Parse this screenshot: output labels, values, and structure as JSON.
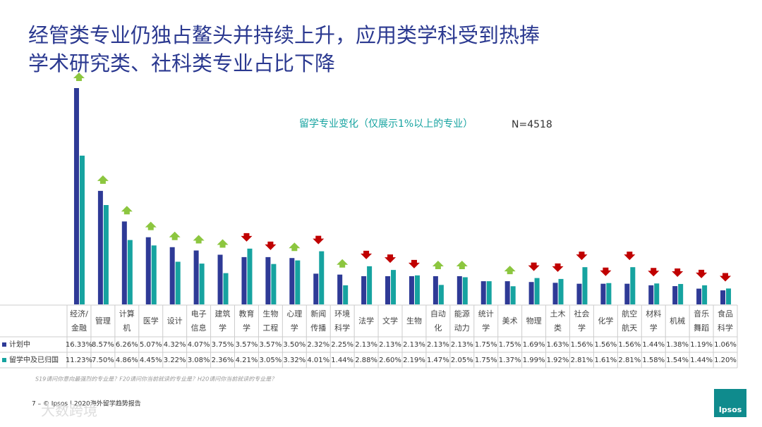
{
  "title": [
    "经管类专业仍独占鳌头并持续上升，应用类学科受到热捧",
    "学术研究类、社科类专业占比下降"
  ],
  "chart_data": {
    "type": "bar",
    "subtitle": "留学专业变化（仅展示1%以上的专业）",
    "note": "N=4518",
    "categories": [
      "经济/金融",
      "管理",
      "计算机",
      "医学",
      "设计",
      "电子信息",
      "建筑学",
      "教育学",
      "生物工程",
      "心理学",
      "新闻传播",
      "环境科学",
      "法学",
      "文学",
      "生物",
      "自动化",
      "能源动力",
      "统计学",
      "美术",
      "物理",
      "土木类",
      "社会学",
      "化学",
      "航空航天",
      "材料学",
      "机械",
      "音乐舞蹈",
      "食品科学"
    ],
    "series": [
      {
        "name": "计划中",
        "color": "#2e3a96",
        "values": [
          16.33,
          8.57,
          6.26,
          5.07,
          4.32,
          4.07,
          3.75,
          3.57,
          3.57,
          3.5,
          2.32,
          2.25,
          2.13,
          2.13,
          2.13,
          2.13,
          2.13,
          1.75,
          1.75,
          1.69,
          1.63,
          1.56,
          1.56,
          1.56,
          1.44,
          1.38,
          1.19,
          1.06
        ],
        "value_labels": [
          "16.33%",
          "8.57%",
          "6.26%",
          "5.07%",
          "4.32%",
          "4.07%",
          "3.75%",
          "3.57%",
          "3.57%",
          "3.50%",
          "2.32%",
          "2.25%",
          "2.13%",
          "2.13%",
          "2.13%",
          "2.13%",
          "2.13%",
          "1.75%",
          "1.75%",
          "1.69%",
          "1.63%",
          "1.56%",
          "1.56%",
          "1.56%",
          "1.44%",
          "1.38%",
          "1.19%",
          "1.06%"
        ]
      },
      {
        "name": "留学中及已归国",
        "color": "#16a3a0",
        "values": [
          11.23,
          7.5,
          4.86,
          4.45,
          3.22,
          3.08,
          2.36,
          4.21,
          3.05,
          3.32,
          4.01,
          1.44,
          2.88,
          2.6,
          2.19,
          1.47,
          2.05,
          1.75,
          1.37,
          1.99,
          1.92,
          2.81,
          1.61,
          2.81,
          1.58,
          1.54,
          1.44,
          1.2
        ],
        "value_labels": [
          "11.23%",
          "7.50%",
          "4.86%",
          "4.45%",
          "3.22%",
          "3.08%",
          "2.36%",
          "4.21%",
          "3.05%",
          "3.32%",
          "4.01%",
          "1.44%",
          "2.88%",
          "2.60%",
          "2.19%",
          "1.47%",
          "2.05%",
          "1.75%",
          "1.37%",
          "1.99%",
          "1.92%",
          "2.81%",
          "1.61%",
          "2.81%",
          "1.58%",
          "1.54%",
          "1.44%",
          "1.20%"
        ]
      }
    ],
    "arrows": [
      "up",
      "up",
      "up",
      "up",
      "up",
      "up",
      "up",
      "down",
      "down",
      "up",
      "down",
      "up",
      "down",
      "down",
      "down",
      "up",
      "up",
      null,
      "up",
      "down",
      "down",
      "down",
      "down",
      "down",
      "down",
      "down",
      "down",
      "down"
    ],
    "arrow_colors": {
      "up": "#8cc63f",
      "down": "#c00000"
    }
  },
  "footnote": "S19请问你意向最强烈的专业是？F20请问你当前就读的专业是？H20请问你当前就读的专业是？",
  "footer": "7 – © Ipsos | 2020海外留学趋势报告",
  "logo": "Ipsos",
  "watermark": "大数跨境"
}
